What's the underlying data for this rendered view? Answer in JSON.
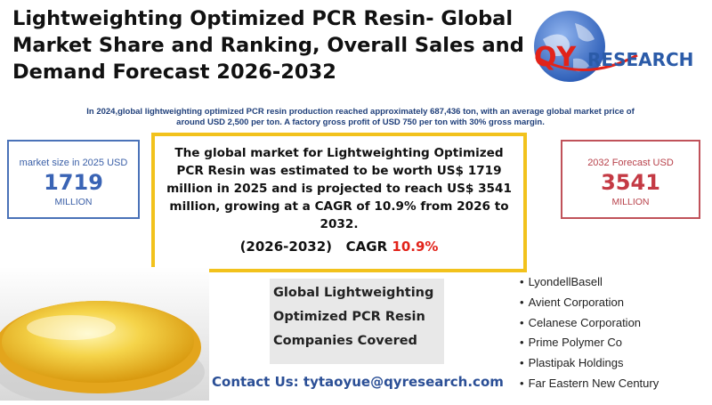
{
  "header": {
    "title": "Lightweighting Optimized PCR Resin- Global Market Share and Ranking, Overall Sales and Demand Forecast 2026-2032",
    "subtitle": "In 2024,global lightweighting optimized PCR resin production reached approximately 687,436 ton, with an average global market price of around USD 2,500 per ton. A factory gross profit of USD 750 per ton with 30% gross margin."
  },
  "logo": {
    "text_qy": "QY",
    "text_research": "RESEARCH",
    "colors": {
      "qy": "#e2231a",
      "research": "#2b5ba8",
      "globe": "#3b6cc2"
    }
  },
  "left_stat": {
    "label": "market size in 2025 USD",
    "value": "1719",
    "unit": "MILLION"
  },
  "right_stat": {
    "label": "2032 Forecast  USD",
    "value": "3541",
    "unit": "MILLION"
  },
  "center": {
    "text": "The global market for Lightweighting Optimized PCR Resin was estimated to be worth US$ 1719 million in 2025 and is projected to reach US$ 3541 million, growing at a CAGR of 10.9% from 2026 to 2032.",
    "cagr_period": "(2026-2032)",
    "cagr_label": "CAGR",
    "cagr_value": "10.9%"
  },
  "companies_box": {
    "line1": "Global Lightweighting",
    "line2": "Optimized PCR Resin",
    "line3": "Companies Covered"
  },
  "contact": "Contact Us: tytaoyue@qyresearch.com",
  "companies": [
    "LyondellBasell",
    "Avient Corporation",
    "Celanese Corporation",
    "Prime Polymer Co",
    "Plastipak Holdings",
    "Far Eastern New Century"
  ]
}
